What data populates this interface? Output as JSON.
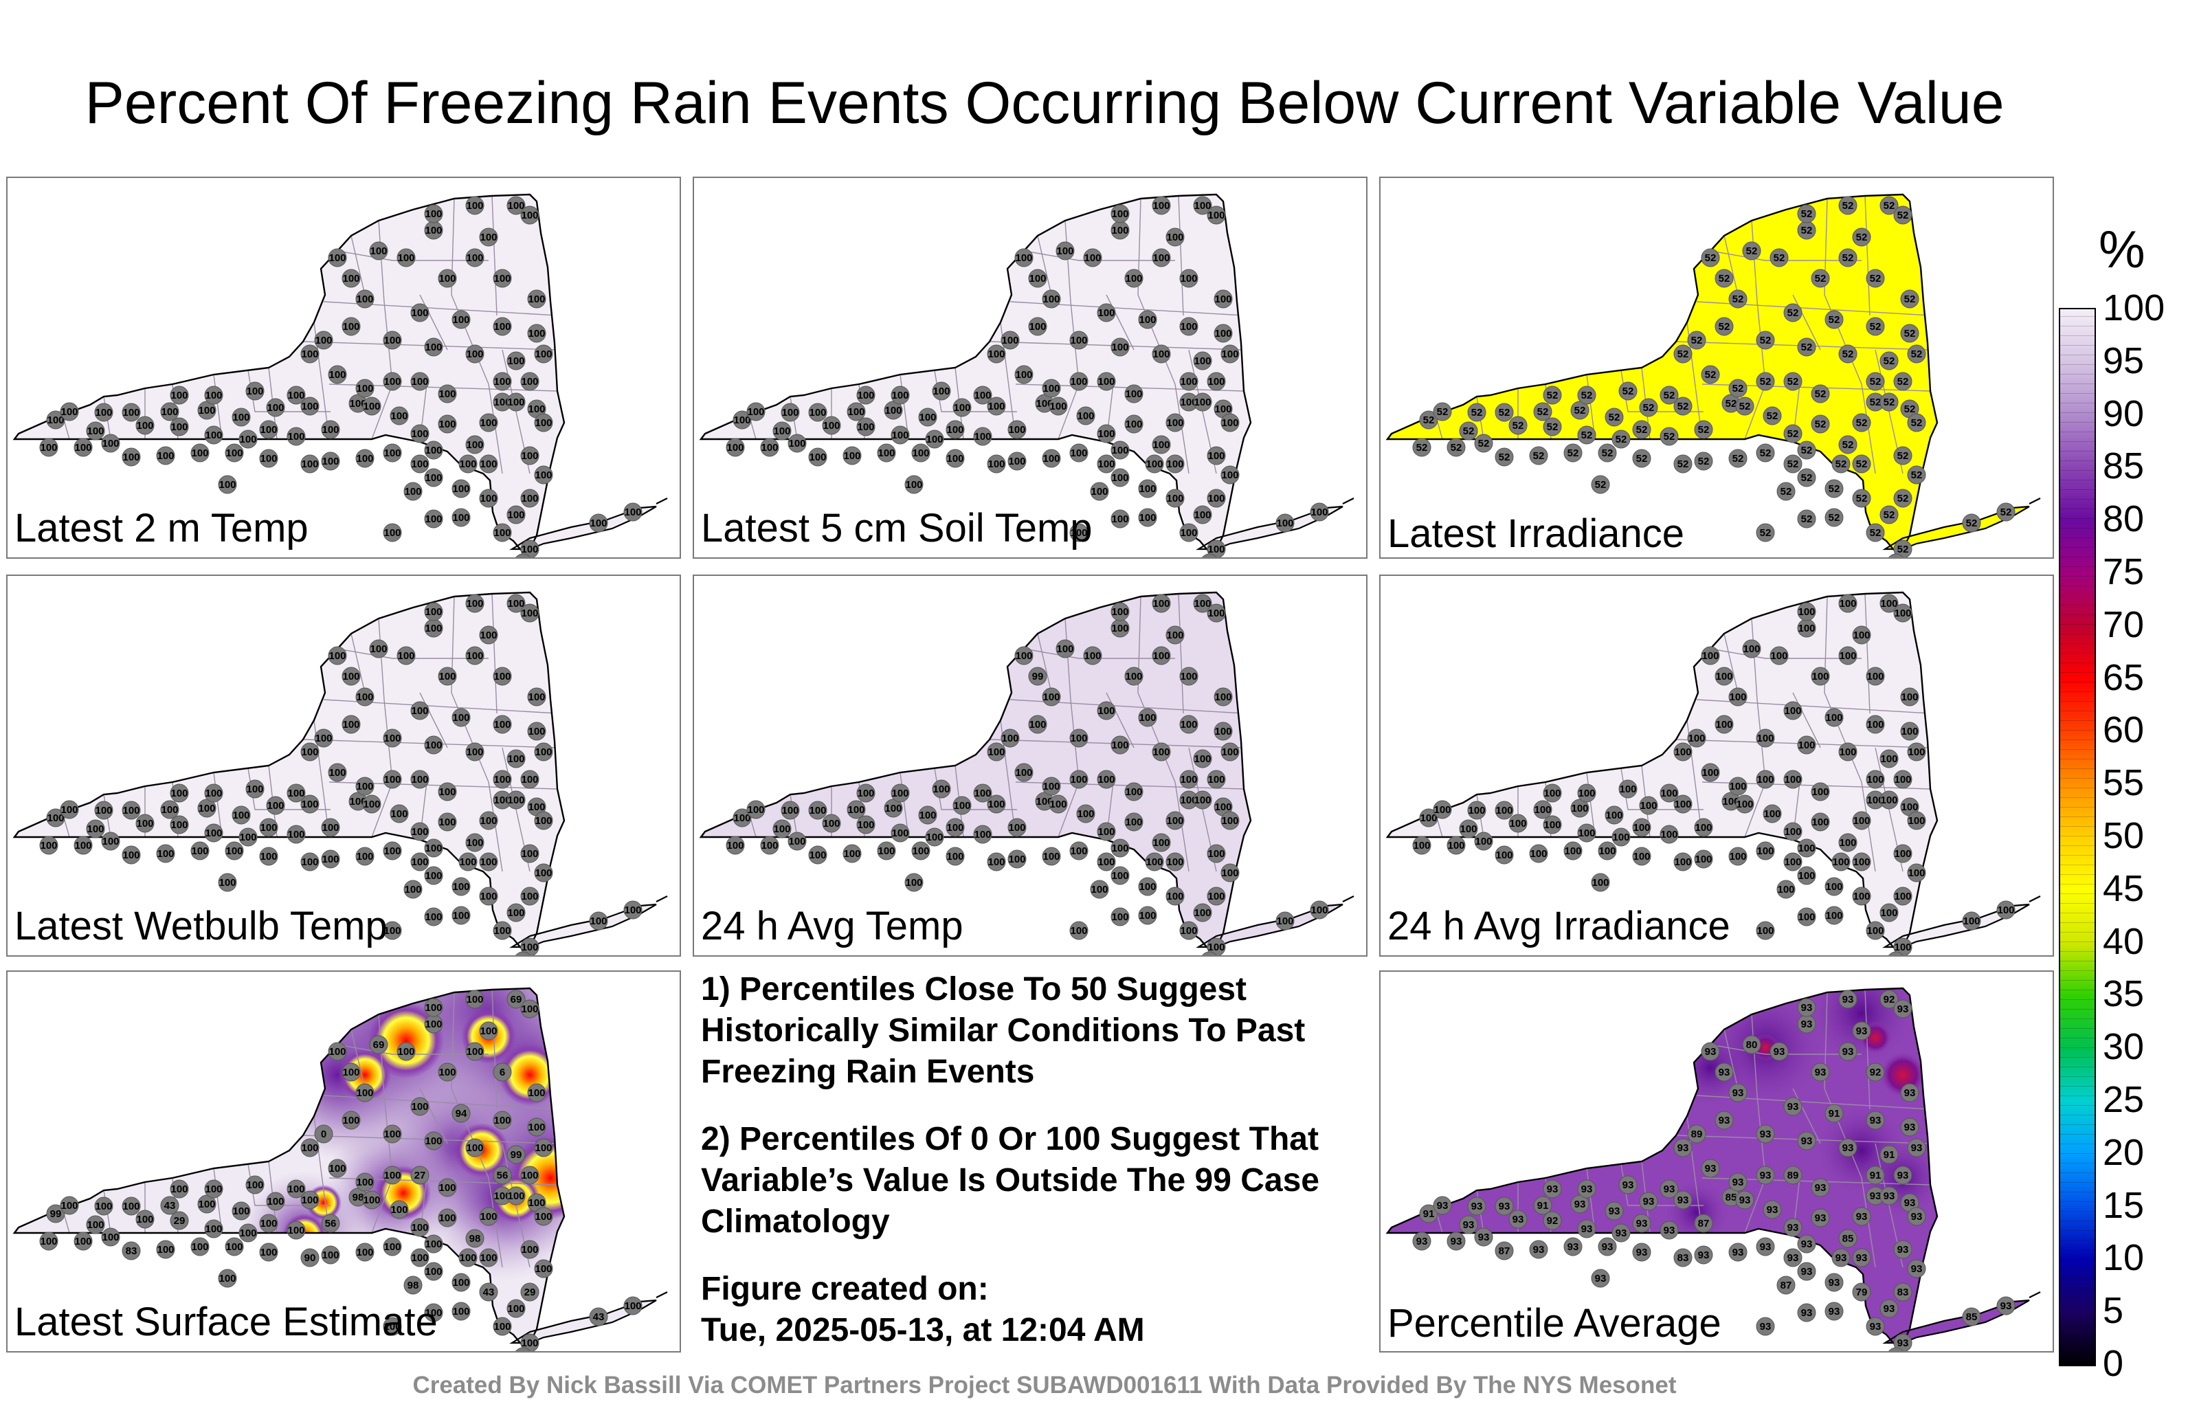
{
  "title": "Percent Of Freezing Rain Events Occurring Below Current Variable Value",
  "panels": [
    {
      "label": "Latest 2 m Temp",
      "value": "100",
      "fill": "#f3eef5"
    },
    {
      "label": "Latest 5 cm Soil Temp",
      "value": "100",
      "fill": "#f3eef5"
    },
    {
      "label": "Latest Irradiance",
      "value": "52",
      "fill": "#ffff00"
    },
    {
      "label": "Latest Wetbulb Temp",
      "value": "100",
      "fill": "#f3eef5"
    },
    {
      "label": "24 h Avg Temp",
      "value": "100",
      "alt_value": "99",
      "fill": "#e7dcee"
    },
    {
      "label": "24 h Avg Irradiance",
      "value": "100",
      "fill": "#f3eef5"
    },
    {
      "label": "Latest Surface Estimate",
      "value": "100",
      "fill": "#f0eaf4",
      "station_values": [
        "99",
        "43",
        "98",
        "56",
        "29",
        "83",
        "90",
        "98",
        "56",
        "29",
        "43",
        "27",
        "0",
        "69",
        "69",
        "6",
        "94"
      ]
    },
    {
      "label": "Percentile Average",
      "value": "93",
      "fill": "#8e44b6",
      "station_values": [
        "91",
        "91",
        "85",
        "87",
        "92",
        "87",
        "83",
        "85",
        "91",
        "83",
        "79",
        "89",
        "89",
        "80",
        "92",
        "92"
      ]
    }
  ],
  "notes": {
    "n1": "1) Percentiles Close To 50 Suggest Historically Similar Conditions To Past Freezing Rain Events",
    "n2": "2) Percentiles Of 0 Or 100 Suggest That Variable’s Value Is Outside The 99 Case Climatology",
    "created_label": "Figure created on:",
    "created_value": "Tue, 2025-05-13, at 12:04 AM"
  },
  "footer": "Created By Nick Bassill Via COMET Partners Project SUBAWD001611 With Data Provided By The NYS Mesonet",
  "colorbar": {
    "unit": "%",
    "ticks": [
      "100",
      "95",
      "90",
      "85",
      "80",
      "75",
      "70",
      "65",
      "60",
      "55",
      "50",
      "45",
      "40",
      "35",
      "30",
      "25",
      "20",
      "15",
      "10",
      "5",
      "0"
    ],
    "colors": [
      "#000000",
      "#1a0060",
      "#0000b0",
      "#0050e8",
      "#00a0ff",
      "#00d0d0",
      "#00c050",
      "#30d000",
      "#d0e800",
      "#ffff00",
      "#ffd000",
      "#ff9000",
      "#ff4000",
      "#ff0000",
      "#c00030",
      "#a00080",
      "#6a0aa0",
      "#8a44b4",
      "#b08ccc",
      "#d6c4e4",
      "#f4eef7"
    ]
  }
}
